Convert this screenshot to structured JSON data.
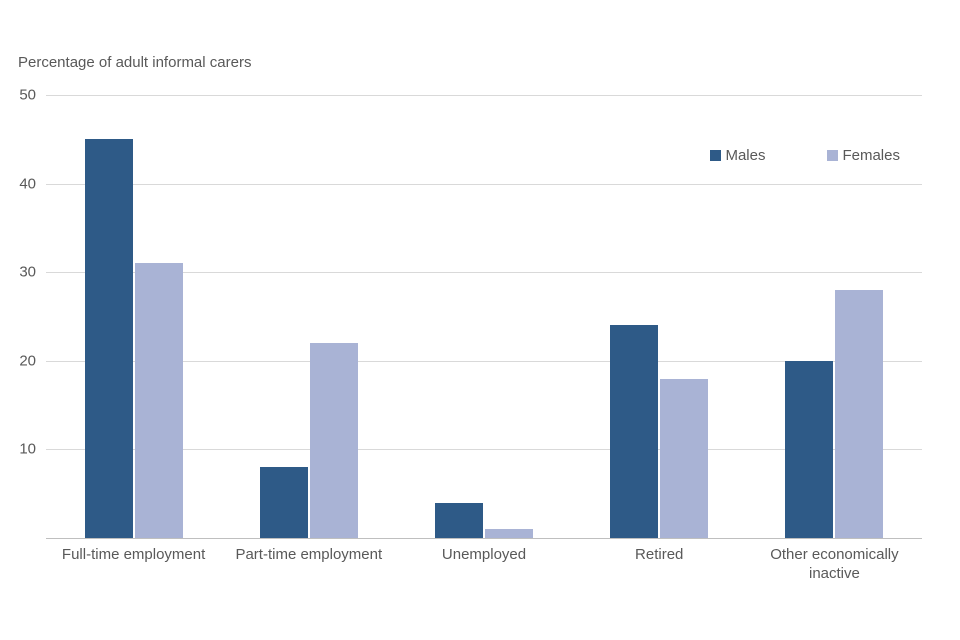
{
  "chart_data": {
    "type": "bar",
    "title": "Percentage of adult informal carers",
    "categories": [
      "Full-time employment",
      "Part-time employment",
      "Unemployed",
      "Retired",
      "Other economically\ninactive"
    ],
    "series": [
      {
        "name": "Males",
        "color": "#2e5a87",
        "values": [
          45,
          8,
          4,
          24,
          20
        ]
      },
      {
        "name": "Females",
        "color": "#a9b3d5",
        "values": [
          31,
          22,
          1,
          18,
          28
        ]
      }
    ],
    "ylim": [
      0,
      50
    ],
    "ytick_labels": [
      50,
      40,
      30,
      20,
      10
    ],
    "grid": true,
    "legend_position": "top-right",
    "xlabel": "",
    "ylabel": "Percentage of adult informal carers"
  },
  "colors": {
    "gridline": "#d9d9d9",
    "axis_line": "#bfbfbf",
    "text": "#595959"
  }
}
